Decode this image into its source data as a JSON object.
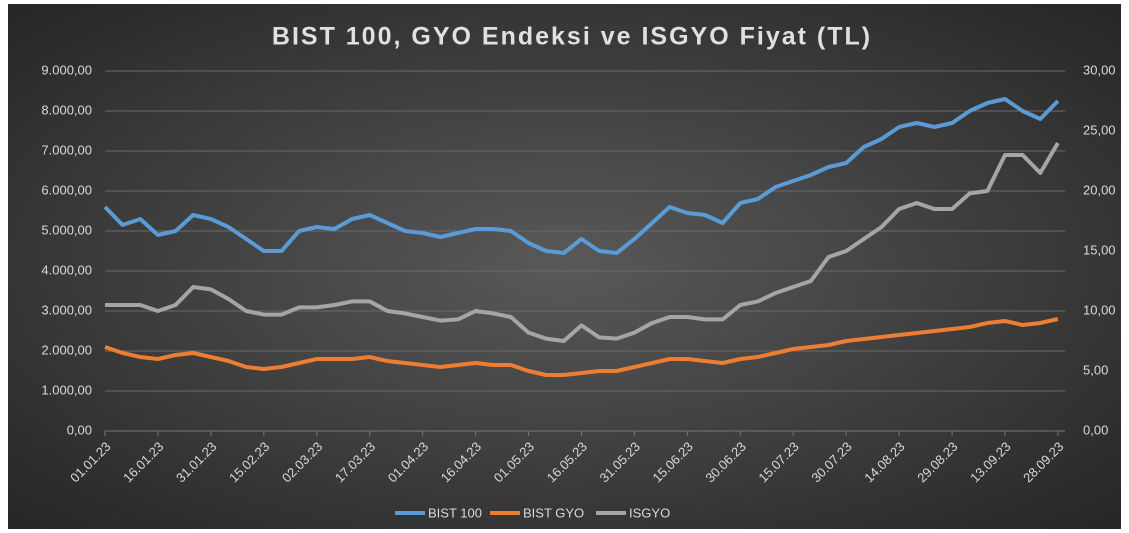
{
  "chart_data": {
    "type": "line",
    "title": "BIST 100, GYO Endeksi ve ISGYO Fiyat (TL)",
    "x": [
      "01.01.23",
      "06.01.23",
      "11.01.23",
      "16.01.23",
      "21.01.23",
      "26.01.23",
      "31.01.23",
      "05.02.23",
      "10.02.23",
      "15.02.23",
      "20.02.23",
      "25.02.23",
      "02.03.23",
      "07.03.23",
      "12.03.23",
      "17.03.23",
      "22.03.23",
      "27.03.23",
      "01.04.23",
      "06.04.23",
      "11.04.23",
      "16.04.23",
      "21.04.23",
      "26.04.23",
      "01.05.23",
      "06.05.23",
      "11.05.23",
      "16.05.23",
      "21.05.23",
      "26.05.23",
      "31.05.23",
      "05.06.23",
      "10.06.23",
      "15.06.23",
      "20.06.23",
      "25.06.23",
      "30.06.23",
      "05.07.23",
      "10.07.23",
      "15.07.23",
      "20.07.23",
      "25.07.23",
      "30.07.23",
      "04.08.23",
      "09.08.23",
      "14.08.23",
      "19.08.23",
      "24.08.23",
      "29.08.23",
      "03.09.23",
      "08.09.23",
      "13.09.23",
      "18.09.23",
      "23.09.23",
      "28.09.23"
    ],
    "xlim": [
      "01.01.23",
      "30.09.23"
    ],
    "xticks": [
      "01.01.23",
      "16.01.23",
      "31.01.23",
      "15.02.23",
      "02.03.23",
      "17.03.23",
      "01.04.23",
      "16.04.23",
      "01.05.23",
      "16.05.23",
      "31.05.23",
      "15.06.23",
      "30.06.23",
      "15.07.23",
      "30.07.23",
      "14.08.23",
      "29.08.23",
      "13.09.23",
      "28.09.23"
    ],
    "series": [
      {
        "name": "BIST 100",
        "color": "#5b9bd5",
        "values": [
          5600,
          5150,
          5300,
          4900,
          5000,
          5400,
          5300,
          5100,
          4800,
          4500,
          4500,
          5000,
          5100,
          5050,
          5300,
          5400,
          5200,
          5000,
          4950,
          4850,
          4950,
          5050,
          5050,
          5000,
          4700,
          4500,
          4450,
          4800,
          4500,
          4450,
          4800,
          5200,
          5600,
          5450,
          5400,
          5200,
          5700,
          5800,
          6100,
          6250,
          6400,
          6600,
          6700,
          7100,
          7300,
          7600,
          7700,
          7600,
          7700,
          8000,
          8200,
          8300,
          8000,
          7800,
          8250
        ]
      },
      {
        "name": "BIST GYO",
        "color": "#ed7d31",
        "values": [
          2100,
          1950,
          1850,
          1800,
          1900,
          1950,
          1850,
          1750,
          1600,
          1550,
          1600,
          1700,
          1800,
          1800,
          1800,
          1850,
          1750,
          1700,
          1650,
          1600,
          1650,
          1700,
          1650,
          1650,
          1500,
          1400,
          1400,
          1450,
          1500,
          1500,
          1600,
          1700,
          1800,
          1800,
          1750,
          1700,
          1800,
          1850,
          1950,
          2050,
          2100,
          2150,
          2250,
          2300,
          2350,
          2400,
          2450,
          2500,
          2550,
          2600,
          2700,
          2750,
          2650,
          2700,
          2800
        ]
      },
      {
        "name": "ISGYO",
        "color": "#a5a5a5",
        "axis": "y2",
        "values": [
          10.5,
          10.5,
          10.5,
          10.0,
          10.5,
          12.0,
          11.8,
          11.0,
          10.0,
          9.7,
          9.7,
          10.3,
          10.3,
          10.5,
          10.8,
          10.8,
          10.0,
          9.8,
          9.5,
          9.2,
          9.3,
          10.0,
          9.8,
          9.5,
          8.2,
          7.7,
          7.5,
          8.8,
          7.8,
          7.7,
          8.2,
          9.0,
          9.5,
          9.5,
          9.3,
          9.3,
          10.5,
          10.8,
          11.5,
          12.0,
          12.5,
          14.5,
          15.0,
          16.0,
          17.0,
          18.5,
          19.0,
          18.5,
          18.5,
          19.8,
          20.0,
          23.0,
          23.0,
          21.5,
          24.0
        ]
      }
    ],
    "ylim": [
      0,
      9000
    ],
    "yticks": [
      {
        "value": 0,
        "label": "0,00"
      },
      {
        "value": 1000,
        "label": "1.000,00"
      },
      {
        "value": 2000,
        "label": "2.000,00"
      },
      {
        "value": 3000,
        "label": "3.000,00"
      },
      {
        "value": 4000,
        "label": "4.000,00"
      },
      {
        "value": 5000,
        "label": "5.000,00"
      },
      {
        "value": 6000,
        "label": "6.000,00"
      },
      {
        "value": 7000,
        "label": "7.000,00"
      },
      {
        "value": 8000,
        "label": "8.000,00"
      },
      {
        "value": 9000,
        "label": "9.000,00"
      }
    ],
    "y2lim": [
      0,
      30
    ],
    "y2ticks": [
      {
        "value": 0,
        "label": "0,00"
      },
      {
        "value": 5,
        "label": "5,00"
      },
      {
        "value": 10,
        "label": "10,00"
      },
      {
        "value": 15,
        "label": "15,00"
      },
      {
        "value": 20,
        "label": "20,00"
      },
      {
        "value": 25,
        "label": "25,00"
      },
      {
        "value": 30,
        "label": "30,00"
      }
    ],
    "grid": true,
    "legend": "bottom"
  }
}
